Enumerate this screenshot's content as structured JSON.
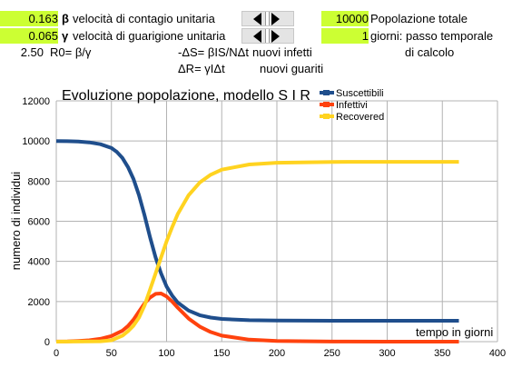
{
  "params": {
    "beta_value": "0.163",
    "beta_symbol": "β",
    "beta_label": "velocità di contagio unitaria",
    "gamma_value": "0.065",
    "gamma_symbol": "γ",
    "gamma_label": "velocità di guarigione unitaria",
    "r0_value": "2.50",
    "r0_label": "R0= β/γ",
    "formula_infected": "-ΔS= βIS/NΔt",
    "formula_infected_label": "nuovi infetti",
    "formula_recovered": "ΔR= γIΔt",
    "formula_recovered_label": "nuovi guariti",
    "population_value": "10000",
    "population_label": "Popolazione totale",
    "timestep_value": "1",
    "timestep_label": "giorni: passo temporale",
    "timestep_label2": "di calcolo"
  },
  "colors": {
    "highlight": "#ccff33",
    "suscettibili": "#1f4e8c",
    "infettivi": "#ff420e",
    "recovered": "#ffd320"
  },
  "chart_data": {
    "type": "line",
    "title": "Evoluzione popolazione, modello S I R",
    "xlabel": "tempo in giorni",
    "ylabel": "numero di individui",
    "xlim": [
      0,
      400
    ],
    "ylim": [
      0,
      12000
    ],
    "xticks": [
      "0",
      "50",
      "100",
      "150",
      "200",
      "250",
      "300",
      "350",
      "400"
    ],
    "yticks": [
      "0",
      "2000",
      "4000",
      "6000",
      "8000",
      "10000",
      "12000"
    ],
    "grid": true,
    "legend_position": "top-right",
    "series": [
      {
        "name": "Suscettibili",
        "x": [
          0,
          10,
          20,
          30,
          40,
          50,
          55,
          60,
          65,
          70,
          75,
          80,
          85,
          90,
          95,
          100,
          105,
          110,
          120,
          130,
          140,
          150,
          175,
          200,
          250,
          300,
          365
        ],
        "y": [
          10000,
          9990,
          9970,
          9930,
          9840,
          9650,
          9450,
          9150,
          8700,
          8100,
          7300,
          6300,
          5200,
          4200,
          3400,
          2750,
          2300,
          1950,
          1550,
          1320,
          1200,
          1130,
          1070,
          1050,
          1040,
          1040,
          1040
        ]
      },
      {
        "name": "Infettivi",
        "x": [
          0,
          10,
          20,
          30,
          40,
          50,
          60,
          65,
          70,
          75,
          80,
          85,
          90,
          95,
          100,
          105,
          110,
          120,
          130,
          140,
          150,
          175,
          200,
          250,
          300,
          365
        ],
        "y": [
          5,
          15,
          35,
          70,
          140,
          280,
          550,
          780,
          1100,
          1500,
          1900,
          2200,
          2380,
          2400,
          2250,
          2000,
          1700,
          1150,
          750,
          480,
          300,
          100,
          35,
          5,
          0,
          0
        ]
      },
      {
        "name": "Recovered",
        "x": [
          0,
          40,
          50,
          60,
          65,
          70,
          75,
          80,
          85,
          90,
          95,
          100,
          105,
          110,
          120,
          130,
          140,
          150,
          175,
          200,
          250,
          300,
          365
        ],
        "y": [
          0,
          20,
          70,
          300,
          520,
          800,
          1200,
          1800,
          2600,
          3400,
          4200,
          5000,
          5700,
          6350,
          7300,
          7930,
          8320,
          8570,
          8830,
          8915,
          8955,
          8960,
          8960
        ]
      }
    ]
  }
}
